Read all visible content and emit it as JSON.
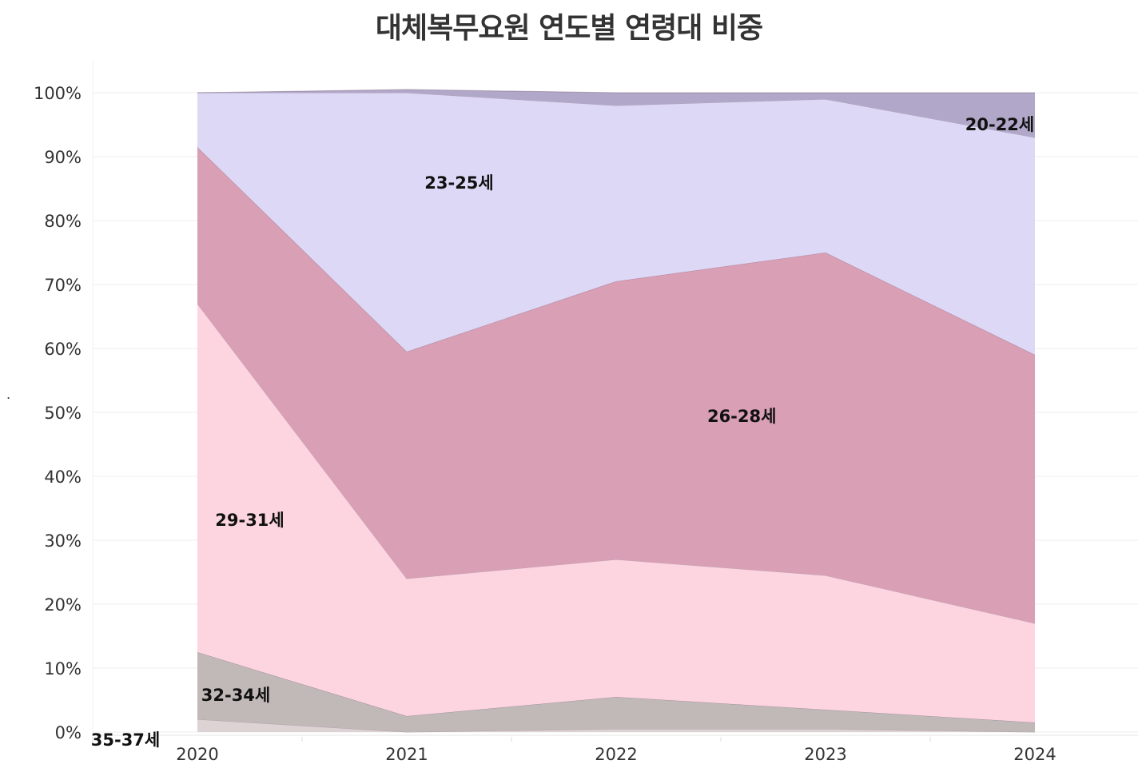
{
  "chart_data": {
    "type": "area",
    "stacked": "percent",
    "title": "대체복무요원 연도별 연령대 비중",
    "xlabel": "",
    "ylabel": ".",
    "ylim": [
      0,
      100
    ],
    "grid": true,
    "legend": "inline labels",
    "x": [
      "2020",
      "2021",
      "2022",
      "2023",
      "2024"
    ],
    "yticks": [
      "0%",
      "10%",
      "20%",
      "30%",
      "40%",
      "50%",
      "60%",
      "70%",
      "80%",
      "90%",
      "100%"
    ],
    "series": [
      {
        "name": "35-37세",
        "values": [
          2.0,
          0.0,
          0.5,
          0.5,
          0.0
        ],
        "color": "#ddd2d4"
      },
      {
        "name": "32-34세",
        "values": [
          10.5,
          2.5,
          5.0,
          3.0,
          1.5
        ],
        "color": "#c1b9b8"
      },
      {
        "name": "29-31세",
        "values": [
          54.5,
          21.5,
          21.5,
          21.0,
          15.5
        ],
        "color": "#fdd5e1"
      },
      {
        "name": "26-28세",
        "values": [
          24.5,
          35.5,
          43.5,
          50.5,
          42.0
        ],
        "color": "#d99fb5"
      },
      {
        "name": "23-25세",
        "values": [
          8.5,
          40.5,
          27.5,
          24.0,
          34.0
        ],
        "color": "#dcd8f5"
      },
      {
        "name": "20-22세",
        "values": [
          0.0,
          0.5,
          2.0,
          1.0,
          7.0
        ],
        "color": "#b1a8c9"
      }
    ]
  }
}
